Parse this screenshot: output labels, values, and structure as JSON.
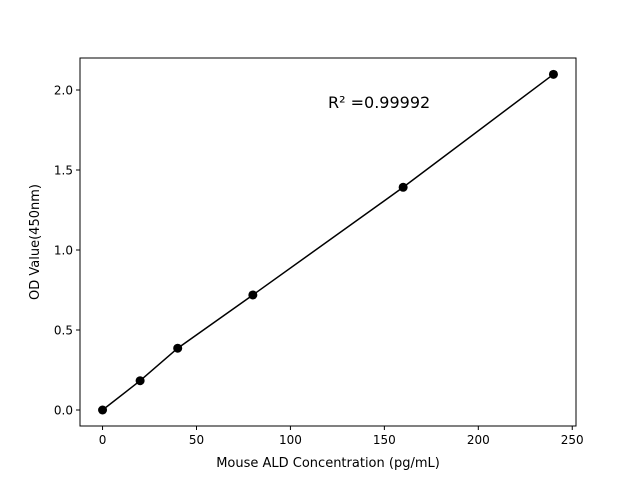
{
  "chart_data": {
    "type": "line",
    "title": "",
    "xlabel": "Mouse ALD Concentration (pg/mL)",
    "ylabel": "OD Value(450nm)",
    "xlim": [
      -12,
      252
    ],
    "ylim": [
      -0.1,
      2.2
    ],
    "xticks": [
      0,
      50,
      100,
      150,
      200,
      250
    ],
    "xtick_labels": [
      "0",
      "50",
      "100",
      "150",
      "200",
      "250"
    ],
    "yticks": [
      0.0,
      0.5,
      1.0,
      1.5,
      2.0
    ],
    "ytick_labels": [
      "0.0",
      "0.5",
      "1.0",
      "1.5",
      "2.0"
    ],
    "grid": false,
    "series": [
      {
        "x": [
          0,
          20,
          40,
          80,
          160,
          240
        ],
        "y": [
          0.0,
          0.183,
          0.386,
          0.719,
          1.392,
          2.098
        ],
        "color": "#000000",
        "marker": "circle"
      }
    ],
    "annotation": "R² =0.99992"
  }
}
